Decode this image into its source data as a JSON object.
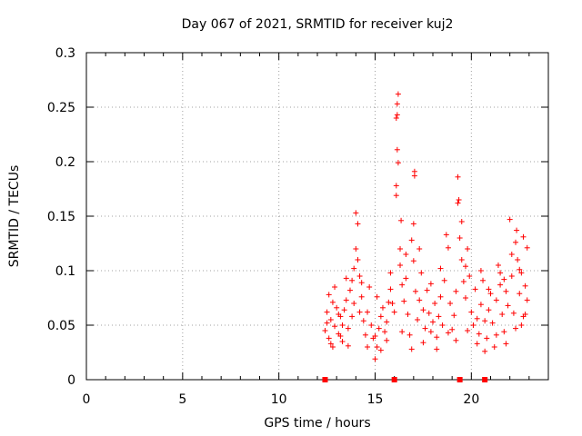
{
  "chart_data": {
    "type": "scatter",
    "title": "Day 067 of 2021, SRMTID for receiver kuj2",
    "xlabel": "GPS time / hours",
    "ylabel": "SRMTID / TECUs",
    "xlim": [
      0,
      24
    ],
    "ylim": [
      0,
      0.3
    ],
    "xticks": [
      "0",
      "5",
      "10",
      "15",
      "20"
    ],
    "yticks": [
      "0",
      "0.05",
      "0.1",
      "0.15",
      "0.2",
      "0.25",
      "0.3"
    ],
    "grid": true,
    "marker": "plus",
    "color": "#ff0000",
    "series": [
      {
        "name": "SRMTID",
        "points": [
          [
            12.4,
            0.045
          ],
          [
            12.5,
            0.062
          ],
          [
            12.6,
            0.038
          ],
          [
            12.7,
            0.055
          ],
          [
            12.8,
            0.071
          ],
          [
            12.9,
            0.049
          ],
          [
            13.0,
            0.066
          ],
          [
            13.1,
            0.042
          ],
          [
            13.2,
            0.058
          ],
          [
            13.3,
            0.035
          ],
          [
            12.5,
            0.052
          ],
          [
            12.6,
            0.078
          ],
          [
            12.8,
            0.03
          ],
          [
            12.9,
            0.085
          ],
          [
            13.1,
            0.06
          ],
          [
            13.3,
            0.05
          ],
          [
            13.4,
            0.064
          ],
          [
            13.5,
            0.073
          ],
          [
            13.6,
            0.047
          ],
          [
            13.7,
            0.082
          ],
          [
            13.8,
            0.091
          ],
          [
            13.9,
            0.102
          ],
          [
            14.0,
            0.12
          ],
          [
            14.0,
            0.153
          ],
          [
            14.1,
            0.143
          ],
          [
            14.1,
            0.11
          ],
          [
            13.9,
            0.07
          ],
          [
            13.8,
            0.058
          ],
          [
            14.2,
            0.095
          ],
          [
            14.3,
            0.076
          ],
          [
            14.4,
            0.054
          ],
          [
            14.5,
            0.041
          ],
          [
            14.6,
            0.062
          ],
          [
            14.7,
            0.085
          ],
          [
            14.8,
            0.05
          ],
          [
            14.9,
            0.038
          ],
          [
            15.0,
            0.019
          ],
          [
            15.1,
            0.03
          ],
          [
            15.2,
            0.047
          ],
          [
            15.3,
            0.058
          ],
          [
            15.4,
            0.066
          ],
          [
            15.5,
            0.044
          ],
          [
            15.6,
            0.053
          ],
          [
            15.7,
            0.071
          ],
          [
            15.8,
            0.083
          ],
          [
            15.9,
            0.07
          ],
          [
            16.0,
            0.062
          ],
          [
            16.1,
            0.169
          ],
          [
            16.1,
            0.178
          ],
          [
            16.15,
            0.211
          ],
          [
            16.1,
            0.24
          ],
          [
            16.15,
            0.243
          ],
          [
            16.15,
            0.253
          ],
          [
            16.2,
            0.262
          ],
          [
            16.2,
            0.199
          ],
          [
            16.3,
            0.12
          ],
          [
            16.35,
            0.146
          ],
          [
            16.3,
            0.105
          ],
          [
            16.4,
            0.087
          ],
          [
            16.5,
            0.072
          ],
          [
            16.6,
            0.093
          ],
          [
            16.7,
            0.06
          ],
          [
            16.8,
            0.041
          ],
          [
            16.9,
            0.128
          ],
          [
            17.0,
            0.143
          ],
          [
            17.0,
            0.109
          ],
          [
            17.05,
            0.187
          ],
          [
            17.05,
            0.191
          ],
          [
            17.1,
            0.081
          ],
          [
            17.2,
            0.055
          ],
          [
            17.3,
            0.073
          ],
          [
            17.4,
            0.098
          ],
          [
            17.5,
            0.064
          ],
          [
            17.6,
            0.047
          ],
          [
            17.7,
            0.082
          ],
          [
            17.8,
            0.061
          ],
          [
            17.9,
            0.044
          ],
          [
            18.0,
            0.053
          ],
          [
            18.1,
            0.07
          ],
          [
            18.2,
            0.039
          ],
          [
            18.3,
            0.058
          ],
          [
            18.4,
            0.076
          ],
          [
            18.5,
            0.05
          ],
          [
            18.6,
            0.091
          ],
          [
            18.7,
            0.133
          ],
          [
            18.8,
            0.121
          ],
          [
            18.9,
            0.07
          ],
          [
            19.0,
            0.046
          ],
          [
            19.1,
            0.059
          ],
          [
            19.2,
            0.081
          ],
          [
            19.3,
            0.162
          ],
          [
            19.35,
            0.165
          ],
          [
            19.3,
            0.186
          ],
          [
            19.4,
            0.13
          ],
          [
            19.5,
            0.11
          ],
          [
            19.5,
            0.145
          ],
          [
            19.6,
            0.09
          ],
          [
            19.7,
            0.075
          ],
          [
            19.8,
            0.12
          ],
          [
            19.9,
            0.095
          ],
          [
            20.0,
            0.062
          ],
          [
            20.1,
            0.05
          ],
          [
            20.2,
            0.083
          ],
          [
            20.3,
            0.056
          ],
          [
            20.4,
            0.042
          ],
          [
            20.5,
            0.069
          ],
          [
            20.6,
            0.091
          ],
          [
            20.7,
            0.054
          ],
          [
            20.8,
            0.038
          ],
          [
            20.9,
            0.064
          ],
          [
            21.0,
            0.079
          ],
          [
            21.1,
            0.052
          ],
          [
            21.2,
            0.03
          ],
          [
            21.3,
            0.073
          ],
          [
            21.4,
            0.105
          ],
          [
            21.5,
            0.087
          ],
          [
            21.6,
            0.06
          ],
          [
            21.7,
            0.044
          ],
          [
            21.8,
            0.081
          ],
          [
            21.9,
            0.068
          ],
          [
            22.0,
            0.147
          ],
          [
            22.1,
            0.095
          ],
          [
            22.2,
            0.061
          ],
          [
            22.3,
            0.126
          ],
          [
            22.35,
            0.137
          ],
          [
            22.4,
            0.11
          ],
          [
            22.5,
            0.079
          ],
          [
            22.6,
            0.098
          ],
          [
            22.7,
            0.131
          ],
          [
            22.8,
            0.086
          ],
          [
            22.9,
            0.121
          ],
          [
            22.9,
            0.073
          ],
          [
            22.8,
            0.06
          ],
          [
            22.6,
            0.05
          ],
          [
            12.7,
            0.033
          ],
          [
            13.2,
            0.04
          ],
          [
            13.6,
            0.031
          ],
          [
            14.2,
            0.062
          ],
          [
            14.6,
            0.03
          ],
          [
            15.0,
            0.04
          ],
          [
            15.3,
            0.027
          ],
          [
            15.6,
            0.036
          ],
          [
            16.4,
            0.044
          ],
          [
            16.9,
            0.028
          ],
          [
            17.5,
            0.034
          ],
          [
            18.2,
            0.028
          ],
          [
            18.8,
            0.043
          ],
          [
            19.2,
            0.036
          ],
          [
            19.8,
            0.045
          ],
          [
            20.3,
            0.033
          ],
          [
            20.7,
            0.026
          ],
          [
            21.3,
            0.041
          ],
          [
            21.8,
            0.033
          ],
          [
            22.3,
            0.047
          ],
          [
            22.7,
            0.058
          ],
          [
            13.5,
            0.093
          ],
          [
            15.8,
            0.098
          ],
          [
            16.6,
            0.115
          ],
          [
            17.3,
            0.12
          ],
          [
            18.4,
            0.102
          ],
          [
            19.7,
            0.104
          ],
          [
            20.5,
            0.1
          ],
          [
            21.5,
            0.098
          ],
          [
            22.1,
            0.115
          ],
          [
            14.3,
            0.089
          ],
          [
            15.1,
            0.076
          ],
          [
            17.9,
            0.088
          ],
          [
            20.9,
            0.083
          ],
          [
            21.7,
            0.092
          ],
          [
            22.5,
            0.101
          ]
        ]
      }
    ],
    "data_gaps_markers": [
      12.4,
      16.0,
      19.4,
      20.7
    ]
  }
}
